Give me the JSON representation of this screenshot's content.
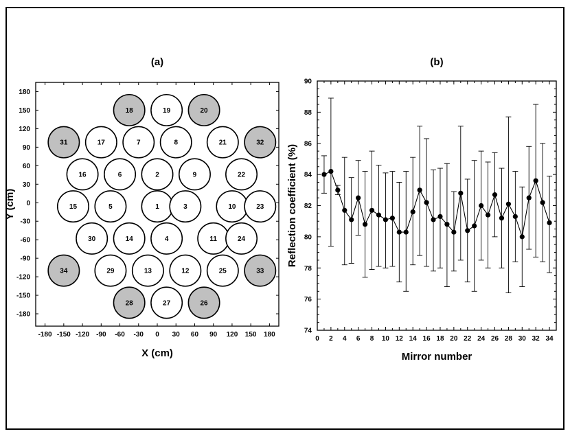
{
  "chart_data": [
    {
      "type": "scatter",
      "panel_label": "(a)",
      "xlabel": "X (cm)",
      "ylabel": "Y (cm)",
      "xlim": [
        -195,
        195
      ],
      "ylim": [
        -200,
        195
      ],
      "xticks": [
        -180,
        -150,
        -120,
        -90,
        -60,
        -30,
        0,
        30,
        60,
        90,
        120,
        150,
        180
      ],
      "yticks": [
        180,
        150,
        120,
        90,
        60,
        30,
        0,
        -30,
        -60,
        -90,
        -120,
        -150,
        -180
      ],
      "fill_colors": {
        "shaded": "#c0c0c0",
        "unshaded": "#ffffff"
      },
      "mirrors": [
        {
          "id": "1",
          "x": 0,
          "y": -6,
          "shaded": false
        },
        {
          "id": "2",
          "x": 0,
          "y": 46,
          "shaded": false
        },
        {
          "id": "3",
          "x": 45,
          "y": -6,
          "shaded": false
        },
        {
          "id": "4",
          "x": 15,
          "y": -58,
          "shaded": false
        },
        {
          "id": "5",
          "x": -75,
          "y": -6,
          "shaded": false
        },
        {
          "id": "6",
          "x": -60,
          "y": 46,
          "shaded": false
        },
        {
          "id": "7",
          "x": -30,
          "y": 98,
          "shaded": false
        },
        {
          "id": "8",
          "x": 30,
          "y": 98,
          "shaded": false
        },
        {
          "id": "9",
          "x": 60,
          "y": 46,
          "shaded": false
        },
        {
          "id": "10",
          "x": 120,
          "y": -6,
          "shaded": false
        },
        {
          "id": "11",
          "x": 90,
          "y": -58,
          "shaded": false
        },
        {
          "id": "12",
          "x": 45,
          "y": -110,
          "shaded": false
        },
        {
          "id": "13",
          "x": -15,
          "y": -110,
          "shaded": false
        },
        {
          "id": "14",
          "x": -45,
          "y": -58,
          "shaded": false
        },
        {
          "id": "15",
          "x": -135,
          "y": -6,
          "shaded": false
        },
        {
          "id": "16",
          "x": -120,
          "y": 46,
          "shaded": false
        },
        {
          "id": "17",
          "x": -90,
          "y": 98,
          "shaded": false
        },
        {
          "id": "18",
          "x": -45,
          "y": 150,
          "shaded": true
        },
        {
          "id": "19",
          "x": 15,
          "y": 150,
          "shaded": false
        },
        {
          "id": "20",
          "x": 75,
          "y": 150,
          "shaded": true
        },
        {
          "id": "21",
          "x": 105,
          "y": 98,
          "shaded": false
        },
        {
          "id": "22",
          "x": 135,
          "y": 46,
          "shaded": false
        },
        {
          "id": "23",
          "x": 165,
          "y": -6,
          "shaded": false
        },
        {
          "id": "24",
          "x": 135,
          "y": -58,
          "shaded": false
        },
        {
          "id": "25",
          "x": 105,
          "y": -110,
          "shaded": false
        },
        {
          "id": "26",
          "x": 75,
          "y": -162,
          "shaded": true
        },
        {
          "id": "27",
          "x": 15,
          "y": -162,
          "shaded": false
        },
        {
          "id": "28",
          "x": -45,
          "y": -162,
          "shaded": true
        },
        {
          "id": "29",
          "x": -75,
          "y": -110,
          "shaded": false
        },
        {
          "id": "30",
          "x": -105,
          "y": -58,
          "shaded": false
        },
        {
          "id": "31",
          "x": -150,
          "y": 98,
          "shaded": true
        },
        {
          "id": "32",
          "x": 165,
          "y": 98,
          "shaded": true
        },
        {
          "id": "33",
          "x": 165,
          "y": -110,
          "shaded": true
        },
        {
          "id": "34",
          "x": -150,
          "y": -110,
          "shaded": true
        }
      ]
    },
    {
      "type": "scatter",
      "panel_label": "(b)",
      "xlabel": "Mirror number",
      "ylabel": "Reflection coefficient (%)",
      "xlim": [
        0,
        35
      ],
      "ylim": [
        74,
        90
      ],
      "xticks": [
        0,
        2,
        4,
        6,
        8,
        10,
        12,
        14,
        16,
        18,
        20,
        22,
        24,
        26,
        28,
        30,
        32,
        34
      ],
      "yticks": [
        74,
        76,
        78,
        80,
        82,
        84,
        86,
        88,
        90
      ],
      "connected": true,
      "x": [
        1,
        2,
        3,
        4,
        5,
        6,
        7,
        8,
        9,
        10,
        11,
        12,
        13,
        14,
        15,
        16,
        17,
        18,
        19,
        20,
        21,
        22,
        23,
        24,
        25,
        26,
        27,
        28,
        29,
        30,
        31,
        32,
        33,
        34
      ],
      "y": [
        84.0,
        84.2,
        83.0,
        81.7,
        81.1,
        82.5,
        80.8,
        81.7,
        81.4,
        81.1,
        81.2,
        80.3,
        80.3,
        81.6,
        83.0,
        82.2,
        81.1,
        81.3,
        80.8,
        80.3,
        82.8,
        80.4,
        80.7,
        82.0,
        81.4,
        82.7,
        81.2,
        82.1,
        81.3,
        80.0,
        82.5,
        83.6,
        82.2,
        80.9
      ],
      "err_low": [
        82.8,
        79.4,
        82.7,
        78.2,
        78.3,
        80.1,
        77.4,
        77.9,
        78.1,
        78.0,
        78.1,
        77.1,
        76.5,
        78.2,
        78.8,
        78.1,
        77.8,
        78.0,
        76.8,
        77.8,
        78.5,
        77.1,
        76.5,
        78.5,
        78.0,
        80.0,
        78.0,
        76.4,
        78.4,
        76.8,
        79.2,
        78.7,
        78.4,
        77.7
      ],
      "err_high": [
        85.2,
        88.9,
        83.3,
        85.1,
        83.8,
        84.9,
        84.2,
        85.5,
        84.6,
        84.1,
        84.2,
        83.5,
        84.2,
        85.1,
        87.1,
        86.3,
        84.3,
        84.4,
        84.7,
        82.9,
        87.1,
        83.7,
        84.9,
        85.5,
        84.8,
        85.4,
        84.4,
        87.7,
        84.2,
        83.2,
        85.8,
        88.5,
        86.0,
        83.9
      ]
    }
  ]
}
